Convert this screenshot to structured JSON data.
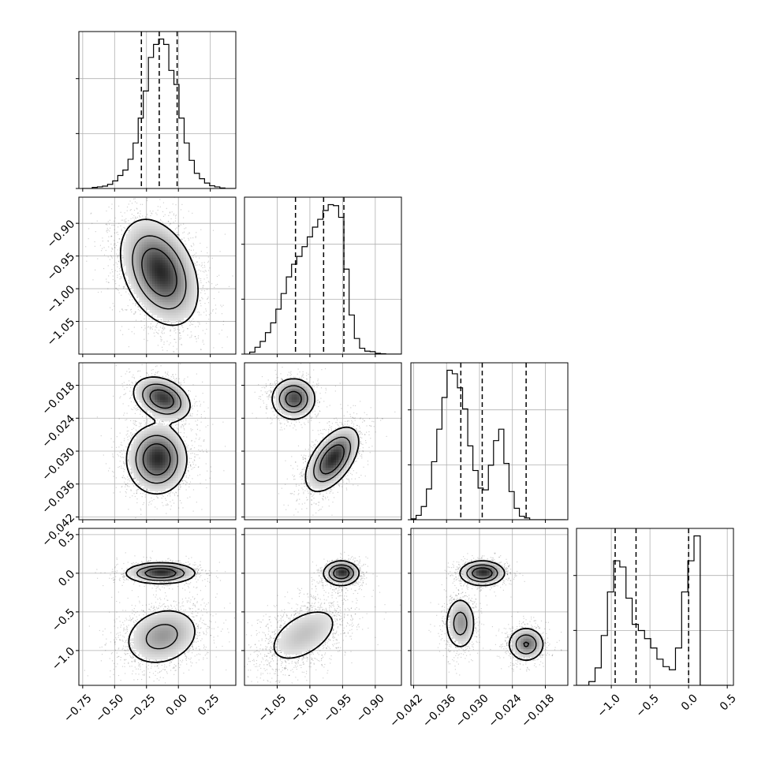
{
  "chart_data": {
    "type": "corner",
    "grid": true,
    "quantile_lines": "dashed",
    "ticks": {
      "p0": [
        -0.75,
        -0.5,
        -0.25,
        0.0,
        0.25
      ],
      "p1": [
        -1.05,
        -1.0,
        -0.95,
        -0.9
      ],
      "p2": [
        -0.042,
        -0.036,
        -0.03,
        -0.024,
        -0.018
      ],
      "p3": [
        -1.0,
        -0.5,
        0.0,
        0.5
      ]
    },
    "tick_labels": {
      "p0": [
        "−0.75",
        "−0.50",
        "−0.25",
        "0.00",
        "0.25"
      ],
      "p1": [
        "−1.05",
        "−1.00",
        "−0.95",
        "−0.90"
      ],
      "p2": [
        "−0.042",
        "−0.036",
        "−0.030",
        "−0.024",
        "−0.018"
      ],
      "p3": [
        "−1.0",
        "−0.5",
        "0.0",
        "0.5"
      ]
    },
    "ranges": {
      "p0": [
        -0.78,
        0.45
      ],
      "p1": [
        -1.1,
        -0.86
      ],
      "p2": [
        -0.0425,
        -0.0139
      ],
      "p3": [
        -1.45,
        0.58
      ]
    },
    "quantiles": {
      "p0": [
        -0.29,
        -0.15,
        -0.01
      ],
      "p1": [
        -1.022,
        -0.979,
        -0.948
      ],
      "p2": [
        -0.0334,
        -0.0295,
        -0.0215
      ],
      "p3": [
        -0.95,
        -0.68,
        0.0
      ]
    },
    "histograms": [
      {
        "param": "p0",
        "x": [
          -0.735,
          -0.695,
          -0.655,
          -0.615,
          -0.575,
          -0.535,
          -0.495,
          -0.455,
          -0.415,
          -0.375,
          -0.335,
          -0.295,
          -0.255,
          -0.215,
          -0.175,
          -0.135,
          -0.095,
          -0.055,
          -0.015,
          0.025,
          0.065,
          0.105,
          0.145,
          0.185,
          0.225,
          0.265,
          0.305,
          0.345,
          0.385,
          0.425
        ],
        "counts": [
          0,
          0,
          10,
          15,
          22,
          38,
          70,
          120,
          170,
          270,
          420,
          650,
          900,
          1210,
          1330,
          1380,
          1330,
          1090,
          960,
          650,
          420,
          260,
          140,
          90,
          50,
          25,
          15,
          5,
          0,
          0
        ]
      },
      {
        "param": "p1",
        "x": [
          -1.096,
          -1.088,
          -1.08,
          -1.072,
          -1.064,
          -1.056,
          -1.048,
          -1.04,
          -1.032,
          -1.024,
          -1.016,
          -1.008,
          -1.0,
          -0.992,
          -0.984,
          -0.976,
          -0.968,
          -0.96,
          -0.952,
          -0.944,
          -0.936,
          -0.928,
          -0.92,
          -0.912,
          -0.904,
          -0.896,
          -0.888,
          -0.88,
          -0.872,
          -0.864
        ],
        "counts": [
          0,
          20,
          70,
          130,
          220,
          320,
          460,
          620,
          790,
          920,
          1000,
          1100,
          1200,
          1300,
          1380,
          1470,
          1530,
          1520,
          1400,
          870,
          400,
          160,
          60,
          30,
          25,
          8,
          3,
          0,
          0,
          0
        ]
      },
      {
        "param": "p2",
        "x": [
          -0.04202,
          -0.04108,
          -0.04014,
          -0.0392,
          -0.03826,
          -0.03731,
          -0.03637,
          -0.03543,
          -0.03449,
          -0.03355,
          -0.03261,
          -0.03167,
          -0.03073,
          -0.02979,
          -0.02885,
          -0.02791,
          -0.02697,
          -0.02603,
          -0.02509,
          -0.02414,
          -0.0232,
          -0.02226,
          -0.02132,
          -0.02038,
          -0.01944,
          -0.0185,
          -0.01756,
          -0.01662,
          -0.01568,
          -0.01474
        ],
        "counts": [
          10,
          50,
          150,
          350,
          660,
          1030,
          1390,
          1700,
          1660,
          1500,
          1260,
          840,
          560,
          360,
          340,
          620,
          900,
          1030,
          640,
          320,
          130,
          40,
          20,
          0,
          0,
          0,
          0,
          0,
          0,
          0
        ]
      },
      {
        "param": "p3",
        "x": [
          -1.41,
          -1.33,
          -1.25,
          -1.17,
          -1.09,
          -1.01,
          -0.93,
          -0.85,
          -0.77,
          -0.69,
          -0.61,
          -0.53,
          -0.45,
          -0.37,
          -0.29,
          -0.21,
          -0.13,
          -0.05,
          0.03,
          0.11,
          0.19,
          0.27,
          0.35,
          0.43,
          0.51
        ],
        "counts": [
          0,
          0,
          6,
          28,
          80,
          150,
          200,
          190,
          140,
          98,
          88,
          75,
          60,
          42,
          30,
          25,
          60,
          150,
          200,
          240,
          0,
          0,
          0,
          0,
          0
        ]
      }
    ],
    "pair_modes": [
      {
        "x": "p0",
        "y": "p1",
        "modes": [
          {
            "cx": -0.15,
            "cy": -0.975,
            "sx": 0.135,
            "sy": 0.036,
            "w": 1.0,
            "rho": -0.35
          }
        ]
      },
      {
        "x": "p0",
        "y": "p2",
        "modes": [
          {
            "cx": -0.13,
            "cy": -0.0205,
            "sx": 0.1,
            "sy": 0.0018,
            "w": 0.35,
            "rho": -0.3
          },
          {
            "cx": -0.17,
            "cy": -0.0315,
            "sx": 0.105,
            "sy": 0.0028,
            "w": 0.65,
            "rho": 0
          }
        ]
      },
      {
        "x": "p1",
        "y": "p2",
        "modes": [
          {
            "cx": -1.025,
            "cy": -0.0205,
            "sx": 0.015,
            "sy": 0.0017,
            "w": 0.35,
            "rho": 0
          },
          {
            "cx": -0.966,
            "cy": -0.0315,
            "sx": 0.018,
            "sy": 0.0026,
            "w": 0.65,
            "rho": 0.55
          }
        ]
      },
      {
        "x": "p0",
        "y": "p3",
        "modes": [
          {
            "cx": -0.14,
            "cy": 0.0,
            "sx": 0.12,
            "sy": 0.06,
            "w": 0.4,
            "rho": 0
          },
          {
            "cx": -0.13,
            "cy": -0.82,
            "sx": 0.14,
            "sy": 0.18,
            "w": 0.6,
            "rho": 0.2
          }
        ]
      },
      {
        "x": "p1",
        "y": "p3",
        "modes": [
          {
            "cx": -0.952,
            "cy": 0.0,
            "sx": 0.012,
            "sy": 0.07,
            "w": 0.4,
            "rho": 0
          },
          {
            "cx": -1.01,
            "cy": -0.8,
            "sx": 0.03,
            "sy": 0.2,
            "w": 0.6,
            "rho": 0.5
          }
        ]
      },
      {
        "x": "p2",
        "y": "p3",
        "modes": [
          {
            "cx": -0.0295,
            "cy": 0.0,
            "sx": 0.0018,
            "sy": 0.07,
            "w": 0.4,
            "rho": 0
          },
          {
            "cx": -0.0335,
            "cy": -0.65,
            "sx": 0.0013,
            "sy": 0.16,
            "w": 0.3,
            "rho": 0
          },
          {
            "cx": -0.0215,
            "cy": -0.92,
            "sx": 0.0015,
            "sy": 0.1,
            "w": 0.3,
            "rho": 0
          }
        ]
      }
    ]
  }
}
